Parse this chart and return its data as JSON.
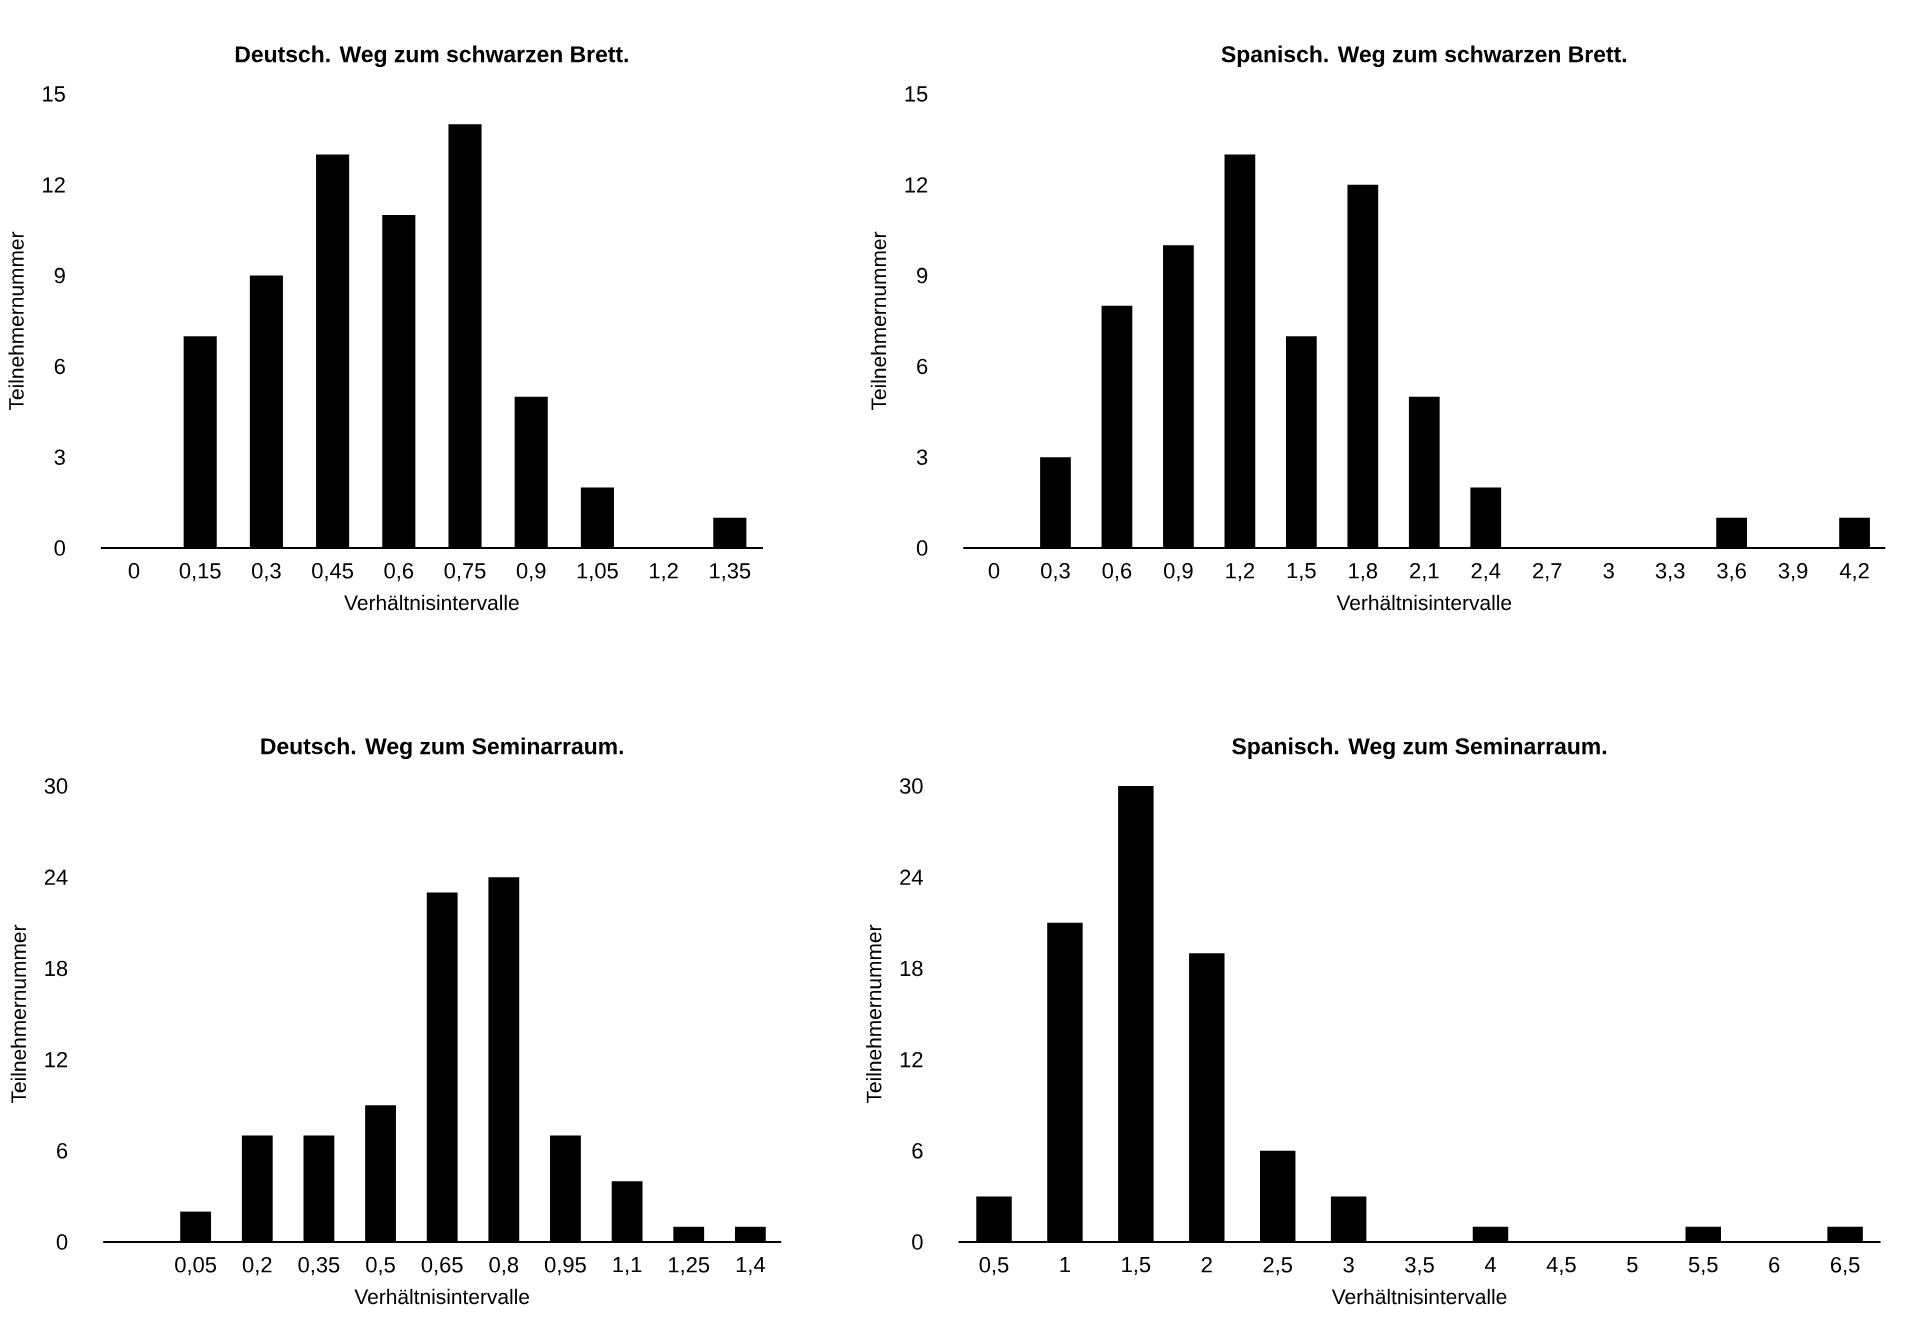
{
  "chart_data": [
    {
      "type": "bar",
      "title": "Deutsch. Weg zum schwarzen Brett.",
      "xlabel": "Verhältnisintervalle",
      "ylabel": "Teilnehmernummer",
      "color": "#000000",
      "ylim": [
        0,
        15
      ],
      "yticks": [
        0,
        3,
        6,
        9,
        12,
        15
      ],
      "categories": [
        "0",
        "0,15",
        "0,3",
        "0,45",
        "0,6",
        "0,75",
        "0,9",
        "1,05",
        "1,2",
        "1,35"
      ],
      "values": [
        0,
        7,
        9,
        13,
        11,
        14,
        5,
        2,
        0,
        1
      ]
    },
    {
      "type": "bar",
      "title": "Spanisch. Weg zum schwarzen Brett.",
      "xlabel": "Verhältnisintervalle",
      "ylabel": "Teilnehmernummer",
      "color": "#000000",
      "ylim": [
        0,
        15
      ],
      "yticks": [
        0,
        3,
        6,
        9,
        12,
        15
      ],
      "categories": [
        "0",
        "0,3",
        "0,6",
        "0,9",
        "1,2",
        "1,5",
        "1,8",
        "2,1",
        "2,4",
        "2,7",
        "3",
        "3,3",
        "3,6",
        "3,9",
        "4,2"
      ],
      "values": [
        0,
        3,
        8,
        10,
        13,
        7,
        12,
        5,
        2,
        0,
        0,
        0,
        1,
        0,
        1
      ]
    },
    {
      "type": "bar",
      "title": "Deutsch. Weg zum Seminarraum.",
      "xlabel": "Verhältnisintervalle",
      "ylabel": "Teilnehmernummer",
      "color": "#000000",
      "ylim": [
        0,
        30
      ],
      "yticks": [
        0,
        6,
        12,
        18,
        24,
        30
      ],
      "categories": [
        null,
        "0,05",
        "0,2",
        "0,35",
        "0,5",
        "0,65",
        "0,8",
        "0,95",
        "1,1",
        "1,25",
        "1,4"
      ],
      "values": [
        0,
        2,
        7,
        7,
        9,
        23,
        24,
        7,
        4,
        1,
        1
      ]
    },
    {
      "type": "bar",
      "title": "Spanisch. Weg zum Seminarraum.",
      "xlabel": "Verhältnisintervalle",
      "ylabel": "Teilnehmernummer",
      "color": "#000000",
      "ylim": [
        0,
        30
      ],
      "yticks": [
        0,
        6,
        12,
        18,
        24,
        30
      ],
      "categories": [
        "0,5",
        "1",
        "1,5",
        "2",
        "2,5",
        "3",
        "3,5",
        "4",
        "4,5",
        "5",
        "5,5",
        "6",
        "6,5"
      ],
      "values": [
        3,
        21,
        30,
        19,
        6,
        3,
        0,
        1,
        0,
        0,
        1,
        0,
        1
      ]
    }
  ]
}
